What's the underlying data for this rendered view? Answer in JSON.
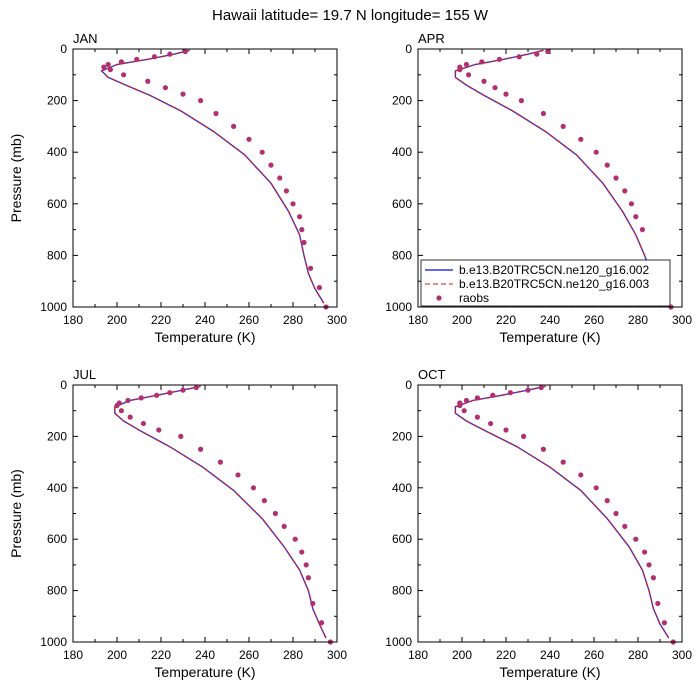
{
  "figure": {
    "title": "Hawaii  latitude= 19.7 N longitude= 155 W",
    "xlabel": "Temperature (K)",
    "ylabel": "Pressure (mb)"
  },
  "colors": {
    "series1": "#3535e0",
    "series2": "#d01818",
    "raobs": "#b03070"
  },
  "legend": {
    "panel": "APR",
    "entries": [
      "b.e13.B20TRC5CN.ne120_g16.002",
      "b.e13.B20TRC5CN.ne120_g16.003",
      "raobs"
    ]
  },
  "chart_data": [
    {
      "type": "line",
      "panel": "JAN",
      "xlim": [
        180,
        300
      ],
      "ylim": [
        1000,
        0
      ],
      "xticks": [
        180,
        200,
        220,
        240,
        260,
        280,
        300
      ],
      "yticks": [
        0,
        200,
        400,
        600,
        800,
        1000
      ],
      "series": [
        {
          "name": "b.e13.B20TRC5CN.ne120_g16.002",
          "style": "solid",
          "x": [
            233,
            226,
            214,
            200,
            193,
            196,
            204,
            215,
            229,
            244,
            258,
            270,
            278,
            283,
            285,
            287,
            290,
            294
          ],
          "y": [
            5,
            20,
            40,
            60,
            85,
            110,
            140,
            180,
            240,
            320,
            410,
            520,
            630,
            720,
            800,
            870,
            930,
            985
          ]
        },
        {
          "name": "b.e13.B20TRC5CN.ne120_g16.003",
          "style": "dashed",
          "x": [
            233,
            226,
            214,
            200,
            193,
            196,
            204,
            215,
            229,
            244,
            258,
            270,
            278,
            283,
            285,
            287,
            290,
            294
          ],
          "y": [
            5,
            20,
            40,
            60,
            85,
            110,
            140,
            180,
            240,
            320,
            410,
            520,
            630,
            720,
            800,
            870,
            930,
            985
          ]
        },
        {
          "name": "raobs",
          "style": "markers",
          "x": [
            231,
            224,
            217,
            209,
            202,
            196,
            194,
            197,
            203,
            214,
            222,
            230,
            238,
            245,
            253,
            260,
            266,
            270,
            274,
            277,
            280,
            283,
            284,
            285,
            288,
            292,
            295
          ],
          "y": [
            10,
            20,
            30,
            40,
            50,
            60,
            70,
            80,
            100,
            125,
            150,
            175,
            200,
            250,
            300,
            350,
            400,
            450,
            500,
            550,
            600,
            650,
            700,
            750,
            850,
            925,
            1000
          ]
        }
      ]
    },
    {
      "type": "line",
      "panel": "APR",
      "xlim": [
        180,
        300
      ],
      "ylim": [
        1000,
        0
      ],
      "xticks": [
        180,
        200,
        220,
        240,
        260,
        280,
        300
      ],
      "yticks": [
        0,
        200,
        400,
        600,
        800,
        1000
      ],
      "series": [
        {
          "name": "b.e13.B20TRC5CN.ne120_g16.002",
          "style": "solid",
          "x": [
            237,
            230,
            219,
            206,
            197,
            197,
            202,
            210,
            223,
            238,
            252,
            264,
            273,
            279,
            283,
            286,
            290,
            294
          ],
          "y": [
            5,
            20,
            40,
            60,
            85,
            110,
            140,
            180,
            240,
            320,
            410,
            520,
            630,
            720,
            800,
            870,
            930,
            985
          ]
        },
        {
          "name": "b.e13.B20TRC5CN.ne120_g16.003",
          "style": "dashed",
          "x": [
            237,
            230,
            219,
            206,
            197,
            197,
            202,
            210,
            223,
            238,
            252,
            264,
            273,
            279,
            283,
            286,
            290,
            294
          ],
          "y": [
            5,
            20,
            40,
            60,
            85,
            110,
            140,
            180,
            240,
            320,
            410,
            520,
            630,
            720,
            800,
            870,
            930,
            985
          ]
        },
        {
          "name": "raobs",
          "style": "markers",
          "x": [
            239,
            234,
            226,
            217,
            209,
            202,
            199,
            199,
            203,
            210,
            215,
            220,
            227,
            237,
            246,
            254,
            261,
            266,
            270,
            274,
            277,
            279,
            282,
            285,
            288,
            295
          ],
          "y": [
            10,
            20,
            30,
            40,
            50,
            60,
            70,
            80,
            100,
            125,
            150,
            175,
            200,
            250,
            300,
            350,
            400,
            450,
            500,
            550,
            600,
            650,
            700,
            850,
            925,
            1000
          ]
        }
      ]
    },
    {
      "type": "line",
      "panel": "JUL",
      "xlim": [
        180,
        300
      ],
      "ylim": [
        1000,
        0
      ],
      "xticks": [
        180,
        200,
        220,
        240,
        260,
        280,
        300
      ],
      "yticks": [
        0,
        200,
        400,
        600,
        800,
        1000
      ],
      "series": [
        {
          "name": "b.e13.B20TRC5CN.ne120_g16.002",
          "style": "solid",
          "x": [
            238,
            230,
            218,
            206,
            199,
            199,
            203,
            211,
            224,
            239,
            253,
            266,
            276,
            283,
            287,
            289,
            292,
            295
          ],
          "y": [
            5,
            20,
            40,
            60,
            85,
            110,
            140,
            180,
            240,
            320,
            410,
            520,
            630,
            720,
            800,
            870,
            930,
            985
          ]
        },
        {
          "name": "b.e13.B20TRC5CN.ne120_g16.003",
          "style": "dashed",
          "x": [
            238,
            230,
            218,
            206,
            199,
            199,
            203,
            211,
            224,
            239,
            253,
            266,
            276,
            283,
            287,
            289,
            292,
            295
          ],
          "y": [
            5,
            20,
            40,
            60,
            85,
            110,
            140,
            180,
            240,
            320,
            410,
            520,
            630,
            720,
            800,
            870,
            930,
            985
          ]
        },
        {
          "name": "raobs",
          "style": "markers",
          "x": [
            236,
            230,
            224,
            218,
            211,
            205,
            201,
            200,
            202,
            206,
            212,
            219,
            229,
            238,
            247,
            255,
            262,
            267,
            272,
            276,
            281,
            284,
            286,
            287,
            289,
            293,
            297
          ],
          "y": [
            10,
            20,
            30,
            40,
            50,
            60,
            70,
            80,
            100,
            125,
            150,
            175,
            200,
            250,
            300,
            350,
            400,
            450,
            500,
            550,
            600,
            650,
            700,
            750,
            850,
            925,
            1000
          ]
        }
      ]
    },
    {
      "type": "line",
      "panel": "OCT",
      "xlim": [
        180,
        300
      ],
      "ylim": [
        1000,
        0
      ],
      "xticks": [
        180,
        200,
        220,
        240,
        260,
        280,
        300
      ],
      "yticks": [
        0,
        200,
        400,
        600,
        800,
        1000
      ],
      "series": [
        {
          "name": "b.e13.B20TRC5CN.ne120_g16.002",
          "style": "solid",
          "x": [
            238,
            230,
            218,
            205,
            197,
            197,
            202,
            211,
            225,
            240,
            254,
            266,
            276,
            282,
            285,
            287,
            290,
            294
          ],
          "y": [
            5,
            20,
            40,
            60,
            85,
            110,
            140,
            180,
            240,
            320,
            410,
            520,
            630,
            720,
            800,
            870,
            930,
            985
          ]
        },
        {
          "name": "b.e13.B20TRC5CN.ne120_g16.003",
          "style": "dashed",
          "x": [
            238,
            230,
            218,
            205,
            197,
            197,
            202,
            211,
            225,
            240,
            254,
            266,
            276,
            282,
            285,
            287,
            290,
            294
          ],
          "y": [
            5,
            20,
            40,
            60,
            85,
            110,
            140,
            180,
            240,
            320,
            410,
            520,
            630,
            720,
            800,
            870,
            930,
            985
          ]
        },
        {
          "name": "raobs",
          "style": "markers",
          "x": [
            236,
            230,
            222,
            214,
            207,
            202,
            199,
            199,
            201,
            207,
            213,
            220,
            228,
            237,
            246,
            254,
            261,
            266,
            270,
            274,
            279,
            283,
            285,
            287,
            289,
            292,
            296
          ],
          "y": [
            10,
            20,
            30,
            40,
            50,
            60,
            70,
            80,
            100,
            125,
            150,
            175,
            200,
            250,
            300,
            350,
            400,
            450,
            500,
            550,
            600,
            650,
            700,
            750,
            850,
            925,
            1000
          ]
        }
      ]
    }
  ]
}
